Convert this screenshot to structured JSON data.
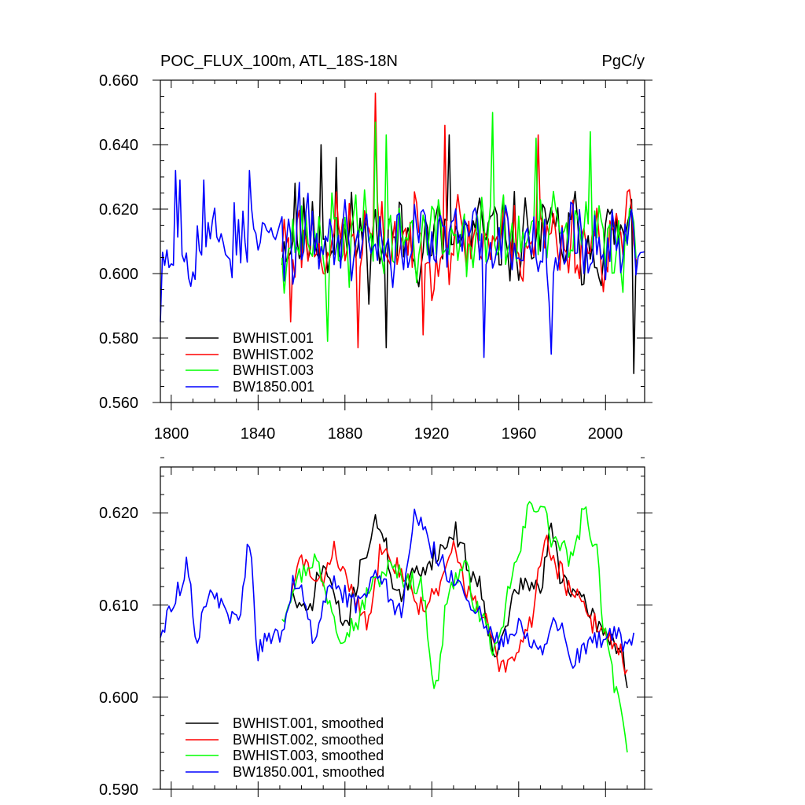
{
  "chart_data": [
    {
      "type": "line",
      "title": "POC_FLUX_100m, ATL_18S-18N",
      "units": "PgC/y",
      "xlim": [
        1795,
        2018
      ],
      "ylim": [
        0.56,
        0.66
      ],
      "xticks": [
        1800,
        1840,
        1880,
        1920,
        1960,
        2000
      ],
      "xtick_labels": [
        "1800",
        "1840",
        "1880",
        "1920",
        "1960",
        "2000"
      ],
      "yticks": [
        0.56,
        0.58,
        0.6,
        0.62,
        0.64,
        0.66
      ],
      "ytick_labels": [
        "0.560",
        "0.580",
        "0.600",
        "0.620",
        "0.640",
        "0.660"
      ],
      "legend": [
        "BWHIST.001",
        "BWHIST.002",
        "BWHIST.003",
        "BW1850.001"
      ],
      "legend_position": "bottom-left",
      "series": [
        {
          "name": "BWHIST.001",
          "color": "#000000",
          "x_start": 1851,
          "x_end": 2014,
          "mean": 0.611,
          "amp": 0.012,
          "seed": 11,
          "x": [
            1857,
            1869,
            1876,
            1899,
            1928,
            2013
          ],
          "y": [
            0.628,
            0.64,
            0.636,
            0.577,
            0.643,
            0.569
          ]
        },
        {
          "name": "BWHIST.002",
          "color": "#ff0000",
          "x_start": 1851,
          "x_end": 2014,
          "mean": 0.611,
          "amp": 0.012,
          "seed": 23,
          "x": [
            1855,
            1886,
            1894,
            1916,
            1926,
            1969
          ],
          "y": [
            0.585,
            0.577,
            0.656,
            0.581,
            0.646,
            0.643
          ]
        },
        {
          "name": "BWHIST.003",
          "color": "#00ff00",
          "x_start": 1851,
          "x_end": 2014,
          "mean": 0.611,
          "amp": 0.012,
          "seed": 37,
          "x": [
            1872,
            1894,
            1899,
            1948,
            1968,
            1993
          ],
          "y": [
            0.579,
            0.647,
            0.643,
            0.65,
            0.642,
            0.644
          ]
        },
        {
          "name": "BW1850.001",
          "color": "#0000ff",
          "x_start": 1795,
          "x_end": 2018,
          "mean": 0.61,
          "amp": 0.011,
          "seed": 53,
          "x": [
            1795,
            1802,
            1804,
            1815,
            1829,
            1836,
            1944,
            1975
          ],
          "y": [
            0.585,
            0.632,
            0.629,
            0.629,
            0.622,
            0.632,
            0.574,
            0.575
          ]
        }
      ]
    },
    {
      "type": "line",
      "title": "",
      "xlim": [
        1795,
        2018
      ],
      "ylim": [
        0.59,
        0.625
      ],
      "yticks": [
        0.59,
        0.6,
        0.61,
        0.62
      ],
      "ytick_labels": [
        "0.590",
        "0.600",
        "0.610",
        "0.620"
      ],
      "legend": [
        "BWHIST.001, smoothed",
        "BWHIST.002, smoothed",
        "BWHIST.003, smoothed",
        "BW1850.001, smoothed"
      ],
      "legend_position": "bottom-left",
      "series": [
        {
          "name": "BWHIST.001, smoothed",
          "color": "#000000",
          "noise": 0.0012,
          "seed": 71,
          "x": [
            1855,
            1862,
            1870,
            1880,
            1890,
            1895,
            1905,
            1915,
            1925,
            1930,
            1940,
            1950,
            1960,
            1970,
            1975,
            1980,
            1990,
            2000,
            2008,
            2010
          ],
          "y": [
            0.611,
            0.609,
            0.614,
            0.608,
            0.616,
            0.619,
            0.611,
            0.614,
            0.616,
            0.618,
            0.613,
            0.605,
            0.612,
            0.612,
            0.618,
            0.613,
            0.61,
            0.607,
            0.605,
            0.601
          ]
        },
        {
          "name": "BWHIST.002, smoothed",
          "color": "#ff0000",
          "noise": 0.0012,
          "seed": 83,
          "x": [
            1855,
            1860,
            1868,
            1875,
            1882,
            1890,
            1898,
            1905,
            1915,
            1922,
            1930,
            1938,
            1945,
            1952,
            1958,
            1965,
            1972,
            1978,
            1985,
            1995,
            2005,
            2010
          ],
          "y": [
            0.611,
            0.615,
            0.612,
            0.616,
            0.612,
            0.608,
            0.617,
            0.614,
            0.61,
            0.611,
            0.616,
            0.611,
            0.608,
            0.603,
            0.604,
            0.608,
            0.617,
            0.614,
            0.611,
            0.608,
            0.606,
            0.603
          ]
        },
        {
          "name": "BWHIST.003, smoothed",
          "color": "#00ff00",
          "noise": 0.0012,
          "seed": 97,
          "x": [
            1851,
            1858,
            1866,
            1872,
            1878,
            1885,
            1892,
            1900,
            1908,
            1915,
            1922,
            1928,
            1935,
            1942,
            1950,
            1958,
            1966,
            1970,
            1976,
            1985,
            1990,
            1995,
            2000,
            2005,
            2010
          ],
          "y": [
            0.609,
            0.613,
            0.615,
            0.611,
            0.607,
            0.608,
            0.612,
            0.614,
            0.613,
            0.612,
            0.601,
            0.612,
            0.614,
            0.609,
            0.605,
            0.614,
            0.621,
            0.621,
            0.617,
            0.615,
            0.62,
            0.617,
            0.607,
            0.601,
            0.594
          ]
        },
        {
          "name": "BW1850.001, smoothed",
          "color": "#0000ff",
          "noise": 0.0012,
          "seed": 113,
          "x": [
            1795,
            1802,
            1807,
            1812,
            1818,
            1825,
            1830,
            1836,
            1840,
            1844,
            1850,
            1858,
            1865,
            1875,
            1885,
            1895,
            1905,
            1913,
            1920,
            1930,
            1940,
            1950,
            1960,
            1970,
            1978,
            1985,
            1995,
            2005,
            2010,
            2013
          ],
          "y": [
            0.607,
            0.611,
            0.614,
            0.607,
            0.612,
            0.609,
            0.608,
            0.616,
            0.605,
            0.606,
            0.607,
            0.613,
            0.607,
            0.612,
            0.61,
            0.614,
            0.609,
            0.62,
            0.616,
            0.613,
            0.609,
            0.606,
            0.608,
            0.605,
            0.608,
            0.604,
            0.606,
            0.607,
            0.605,
            0.607
          ]
        }
      ]
    }
  ]
}
